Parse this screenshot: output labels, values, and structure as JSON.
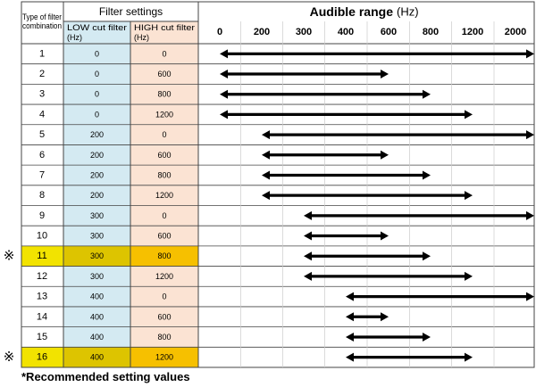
{
  "header": {
    "type_label": "Type of filter combination",
    "filter_settings": "Filter settings",
    "low_cut": "LOW cut filter (Hz)",
    "high_cut": "HIGH cut filter (Hz)",
    "audible_title": "Audible range",
    "audible_unit": "(Hz)"
  },
  "scale": [
    "0",
    "200",
    "300",
    "400",
    "600",
    "800",
    "1200",
    "2000"
  ],
  "mark_symbol": "※",
  "footnote": "*Recommended setting values",
  "colors": {
    "low_bg": "#d4eaf2",
    "high_bg": "#fbe3d3",
    "rec_type_bg": "#f2e300",
    "rec_low_bg": "#ddc400",
    "rec_high_bg": "#f6c000",
    "grid": "#444444",
    "arrow": "#000000"
  },
  "rows": [
    {
      "type": "1",
      "low": "0",
      "high": "0",
      "recommended": false
    },
    {
      "type": "2",
      "low": "0",
      "high": "600",
      "recommended": false
    },
    {
      "type": "3",
      "low": "0",
      "high": "800",
      "recommended": false
    },
    {
      "type": "4",
      "low": "0",
      "high": "1200",
      "recommended": false
    },
    {
      "type": "5",
      "low": "200",
      "high": "0",
      "recommended": false
    },
    {
      "type": "6",
      "low": "200",
      "high": "600",
      "recommended": false
    },
    {
      "type": "7",
      "low": "200",
      "high": "800",
      "recommended": false
    },
    {
      "type": "8",
      "low": "200",
      "high": "1200",
      "recommended": false
    },
    {
      "type": "9",
      "low": "300",
      "high": "0",
      "recommended": false
    },
    {
      "type": "10",
      "low": "300",
      "high": "600",
      "recommended": false
    },
    {
      "type": "11",
      "low": "300",
      "high": "800",
      "recommended": true
    },
    {
      "type": "12",
      "low": "300",
      "high": "1200",
      "recommended": false
    },
    {
      "type": "13",
      "low": "400",
      "high": "0",
      "recommended": false
    },
    {
      "type": "14",
      "low": "400",
      "high": "600",
      "recommended": false
    },
    {
      "type": "15",
      "low": "400",
      "high": "800",
      "recommended": false
    },
    {
      "type": "16",
      "low": "400",
      "high": "1200",
      "recommended": true
    }
  ]
}
